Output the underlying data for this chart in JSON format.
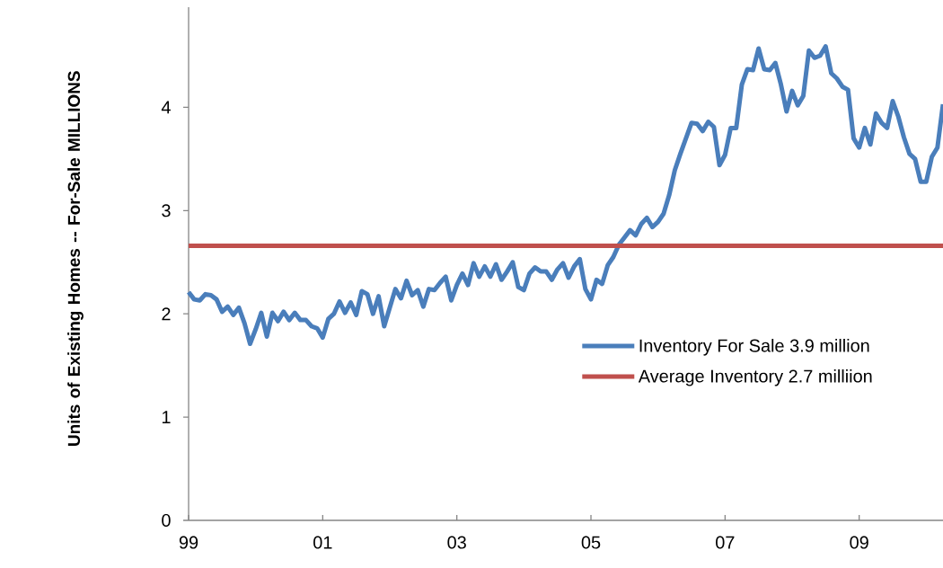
{
  "chart_data": {
    "type": "line",
    "ylabel": "Units of Existing Homes -- For-Sale MILLIONS",
    "x": [
      "1999-01",
      "1999-02",
      "1999-03",
      "1999-04",
      "1999-05",
      "1999-06",
      "1999-07",
      "1999-08",
      "1999-09",
      "1999-10",
      "1999-11",
      "1999-12",
      "2000-01",
      "2000-02",
      "2000-03",
      "2000-04",
      "2000-05",
      "2000-06",
      "2000-07",
      "2000-08",
      "2000-09",
      "2000-10",
      "2000-11",
      "2000-12",
      "2001-01",
      "2001-02",
      "2001-03",
      "2001-04",
      "2001-05",
      "2001-06",
      "2001-07",
      "2001-08",
      "2001-09",
      "2001-10",
      "2001-11",
      "2001-12",
      "2002-01",
      "2002-02",
      "2002-03",
      "2002-04",
      "2002-05",
      "2002-06",
      "2002-07",
      "2002-08",
      "2002-09",
      "2002-10",
      "2002-11",
      "2002-12",
      "2003-01",
      "2003-02",
      "2003-03",
      "2003-04",
      "2003-05",
      "2003-06",
      "2003-07",
      "2003-08",
      "2003-09",
      "2003-10",
      "2003-11",
      "2003-12",
      "2004-01",
      "2004-02",
      "2004-03",
      "2004-04",
      "2004-05",
      "2004-06",
      "2004-07",
      "2004-08",
      "2004-09",
      "2004-10",
      "2004-11",
      "2004-12",
      "2005-01",
      "2005-02",
      "2005-03",
      "2005-04",
      "2005-05",
      "2005-06",
      "2005-07",
      "2005-08",
      "2005-09",
      "2005-10",
      "2005-11",
      "2005-12",
      "2006-01",
      "2006-02",
      "2006-03",
      "2006-04",
      "2006-05",
      "2006-06",
      "2006-07",
      "2006-08",
      "2006-09",
      "2006-10",
      "2006-11",
      "2006-12",
      "2007-01",
      "2007-02",
      "2007-03",
      "2007-04",
      "2007-05",
      "2007-06",
      "2007-07",
      "2007-08",
      "2007-09",
      "2007-10",
      "2007-11",
      "2007-12",
      "2008-01",
      "2008-02",
      "2008-03",
      "2008-04",
      "2008-05",
      "2008-06",
      "2008-07",
      "2008-08",
      "2008-09",
      "2008-10",
      "2008-11",
      "2008-12",
      "2009-01",
      "2009-02",
      "2009-03",
      "2009-04",
      "2009-05",
      "2009-06",
      "2009-07",
      "2009-08",
      "2009-09",
      "2009-10",
      "2009-11",
      "2009-12",
      "2010-01",
      "2010-02",
      "2010-03",
      "2010-04"
    ],
    "series": [
      {
        "name": "Inventory For Sale 3.9 million",
        "color": "#4a7ebb",
        "values": [
          2.21,
          2.14,
          2.13,
          2.19,
          2.18,
          2.14,
          2.02,
          2.07,
          1.99,
          2.06,
          1.91,
          1.71,
          1.85,
          2.01,
          1.78,
          2.01,
          1.93,
          2.02,
          1.94,
          2.01,
          1.94,
          1.94,
          1.88,
          1.86,
          1.77,
          1.95,
          2.0,
          2.12,
          2.01,
          2.11,
          1.99,
          2.22,
          2.19,
          2.0,
          2.17,
          1.88,
          2.06,
          2.24,
          2.15,
          2.32,
          2.18,
          2.23,
          2.07,
          2.24,
          2.23,
          2.3,
          2.36,
          2.13,
          2.28,
          2.39,
          2.28,
          2.49,
          2.36,
          2.46,
          2.36,
          2.48,
          2.33,
          2.41,
          2.5,
          2.26,
          2.23,
          2.39,
          2.45,
          2.41,
          2.41,
          2.33,
          2.43,
          2.49,
          2.35,
          2.46,
          2.53,
          2.24,
          2.14,
          2.33,
          2.29,
          2.47,
          2.55,
          2.67,
          2.74,
          2.81,
          2.76,
          2.87,
          2.93,
          2.84,
          2.89,
          2.97,
          3.15,
          3.39,
          3.55,
          3.7,
          3.85,
          3.84,
          3.77,
          3.86,
          3.81,
          3.44,
          3.54,
          3.8,
          3.8,
          4.22,
          4.37,
          4.36,
          4.57,
          4.37,
          4.36,
          4.43,
          4.22,
          3.96,
          4.16,
          4.02,
          4.11,
          4.55,
          4.48,
          4.5,
          4.59,
          4.33,
          4.28,
          4.2,
          4.17,
          3.7,
          3.61,
          3.8,
          3.64,
          3.94,
          3.85,
          3.8,
          4.06,
          3.91,
          3.71,
          3.55,
          3.5,
          3.28,
          3.28,
          3.52,
          3.61,
          4.03
        ]
      }
    ],
    "xlim": [
      "1999-01",
      "2010-04"
    ],
    "xticks": [
      {
        "value": "1999-01",
        "label": "99"
      },
      {
        "value": "2001-01",
        "label": "01"
      },
      {
        "value": "2003-01",
        "label": "03"
      },
      {
        "value": "2005-01",
        "label": "05"
      },
      {
        "value": "2007-01",
        "label": "07"
      },
      {
        "value": "2009-01",
        "label": "09"
      }
    ],
    "ylim": [
      0,
      4.97
    ],
    "yticks": [
      0,
      1,
      2,
      3,
      4
    ],
    "ref_lines": [
      {
        "axis": "y",
        "value": 2.66,
        "label": "Average Inventory 2.7 milliion",
        "color": "#c0504d"
      }
    ],
    "legend": "right",
    "grid": false,
    "marker": "none",
    "line_style": "solid"
  }
}
